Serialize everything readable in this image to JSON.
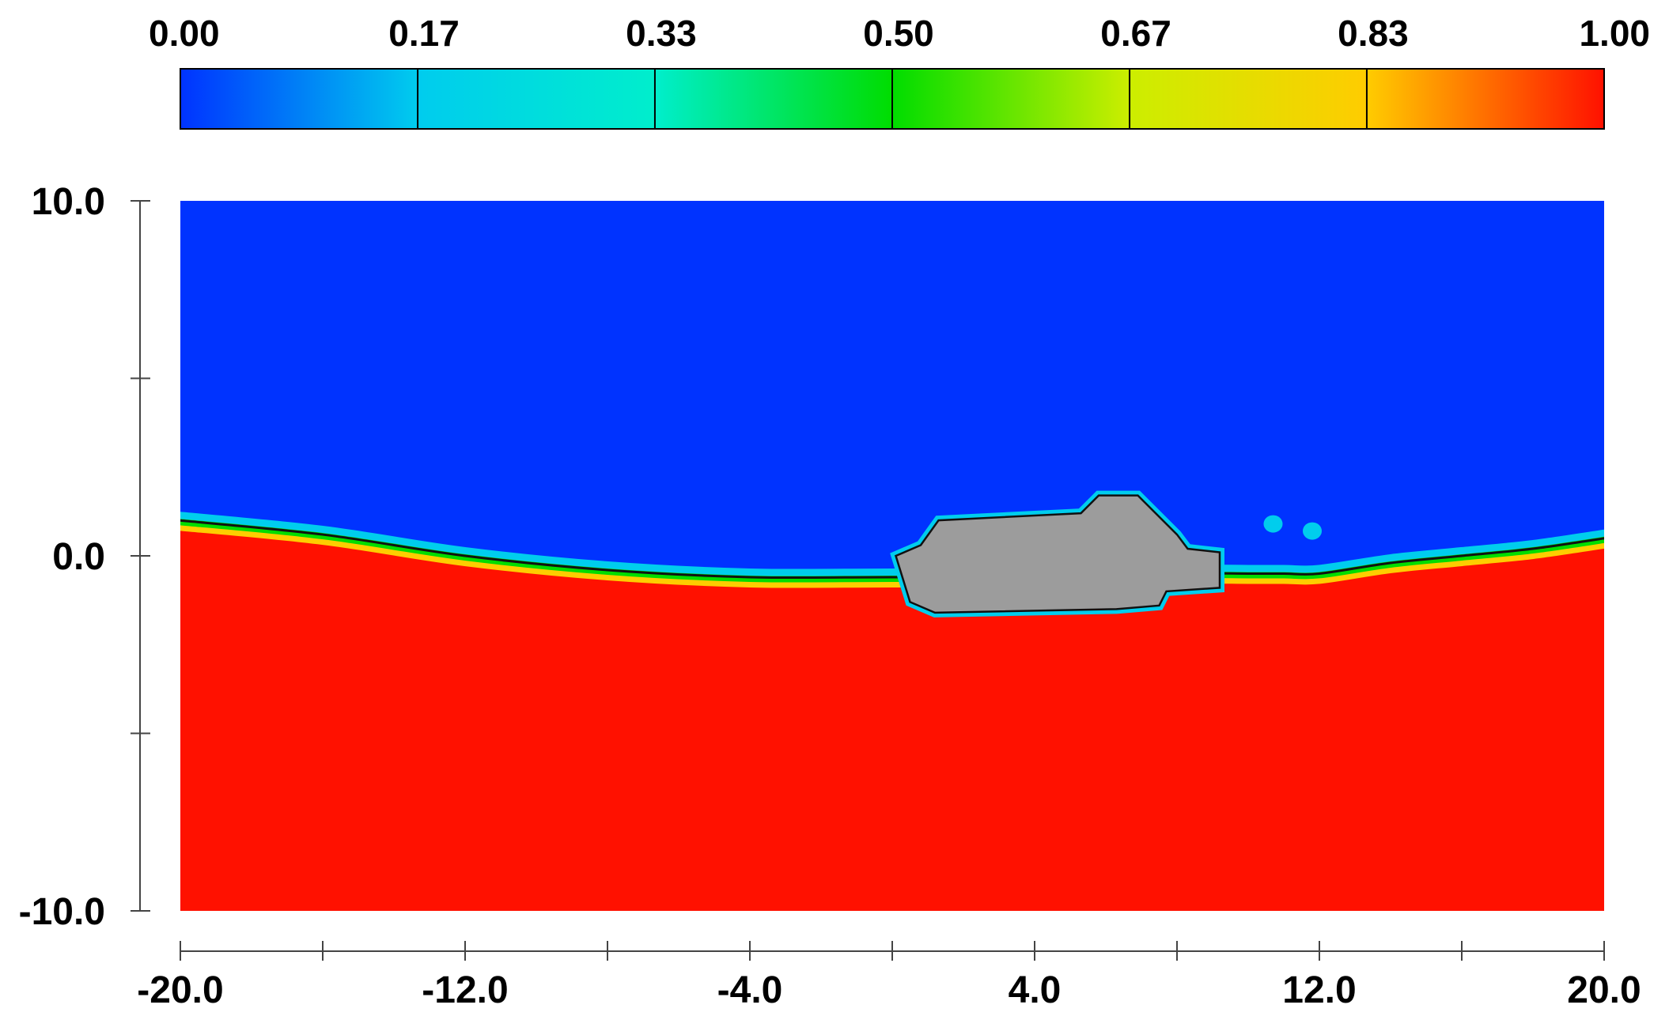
{
  "chart_data": {
    "type": "heatmap",
    "title": "",
    "xlabel": "",
    "ylabel": "",
    "xlim": [
      -20,
      20
    ],
    "ylim": [
      -10,
      10
    ],
    "x_ticks": [
      "-20.0",
      "-12.0",
      "-4.0",
      "4.0",
      "12.0",
      "20.0"
    ],
    "x_tick_values": [
      -20,
      -12,
      -4,
      4,
      12,
      20
    ],
    "x_minor_tick_values": [
      -16,
      -8,
      0,
      8,
      16
    ],
    "y_ticks": [
      "10.0",
      "0.0",
      "-10.0"
    ],
    "y_tick_values": [
      10,
      0,
      -10
    ],
    "y_minor_tick_values": [
      5,
      -5
    ],
    "colorbar": {
      "range": [
        0,
        1
      ],
      "position": "top",
      "tick_labels": [
        "0.00",
        "0.17",
        "0.33",
        "0.50",
        "0.67",
        "0.83",
        "1.00"
      ],
      "tick_values": [
        0,
        0.1667,
        0.3333,
        0.5,
        0.6667,
        0.8333,
        1
      ],
      "colormap": [
        "#0033ff",
        "#00ccee",
        "#00eecc",
        "#00dd00",
        "#ccee00",
        "#ffcc00",
        "#ff1100"
      ]
    },
    "fields": {
      "air_value": 0,
      "water_value": 1,
      "air_color": "#0033ff",
      "water_color": "#ff1100",
      "body_color": "#9c9c9c"
    },
    "free_surface": {
      "x": [
        -20,
        -16,
        -12,
        -8,
        -4,
        0,
        4,
        8,
        10,
        11,
        12,
        14,
        16,
        18,
        20
      ],
      "y": [
        1.0,
        0.6,
        0.0,
        -0.4,
        -0.6,
        -0.6,
        -0.6,
        -0.5,
        -0.5,
        -0.5,
        -0.5,
        -0.2,
        0.0,
        0.2,
        0.5
      ]
    },
    "floating_body": {
      "x": [
        0.1,
        0.8,
        1.3,
        5.3,
        5.8,
        6.9,
        8.0,
        8.3,
        9.2,
        9.2,
        7.7,
        7.5,
        6.3,
        1.2,
        0.5
      ],
      "y": [
        0.0,
        0.3,
        1.0,
        1.2,
        1.7,
        1.7,
        0.6,
        0.2,
        0.1,
        -0.9,
        -1.0,
        -1.4,
        -1.5,
        -1.6,
        -1.3
      ]
    },
    "spray_blobs": [
      {
        "x": 10.7,
        "y": 0.9,
        "value": 0.17
      },
      {
        "x": 11.8,
        "y": 0.7,
        "value": 0.17
      }
    ]
  }
}
